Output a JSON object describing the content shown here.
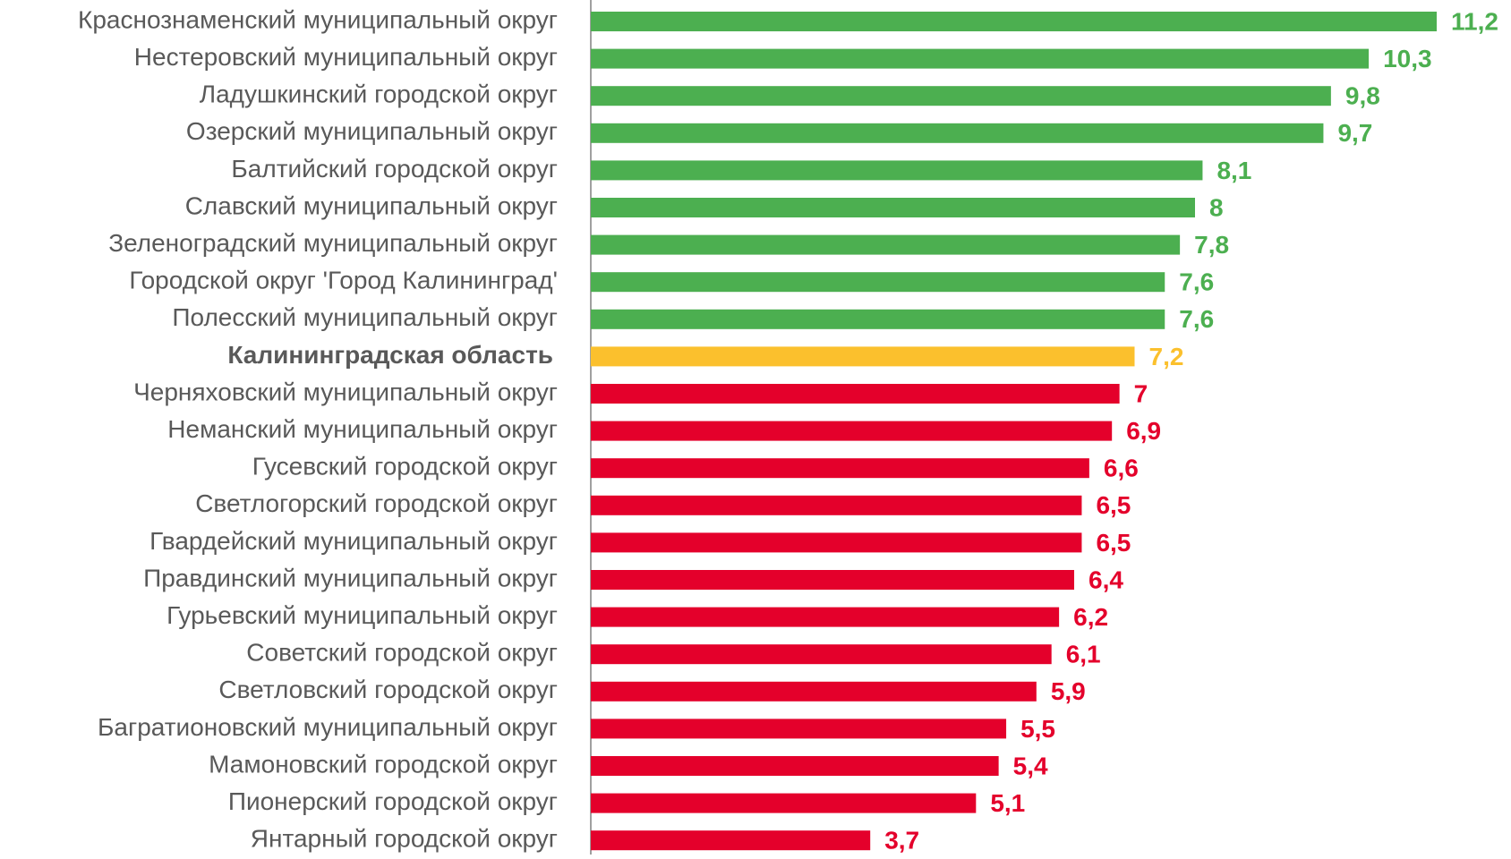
{
  "chart_data": {
    "type": "bar",
    "orientation": "horizontal",
    "categories": [
      "Краснознаменский муниципальный округ",
      "Нестеровский муниципальный округ",
      "Ладушкинский городской округ",
      "Озерский муниципальный округ",
      "Балтийский городской округ",
      "Славский муниципальный округ",
      "Зеленоградский муниципальный округ",
      "Городской округ 'Город Калининград'",
      "Полесский муниципальный округ",
      "Калининградская область",
      "Черняховский муниципальный округ",
      "Неманский муниципальный округ",
      "Гусевский городской округ",
      "Светлогорский городской округ",
      "Гвардейский муниципальный округ",
      "Правдинский муниципальный округ",
      "Гурьевский муниципальный округ",
      "Советский городской округ",
      "Светловский городской округ",
      "Багратионовский муниципальный округ",
      "Мамоновский городской округ",
      "Пионерский городской округ",
      "Янтарный городской округ"
    ],
    "values": [
      11.2,
      10.3,
      9.8,
      9.7,
      8.1,
      8,
      7.8,
      7.6,
      7.6,
      7.2,
      7,
      6.9,
      6.6,
      6.5,
      6.5,
      6.4,
      6.2,
      6.1,
      5.9,
      5.5,
      5.4,
      5.1,
      3.7
    ],
    "value_labels": [
      "11,2",
      "10,3",
      "9,8",
      "9,7",
      "8,1",
      "8",
      "7,8",
      "7,6",
      "7,6",
      "7,2",
      "7",
      "6,9",
      "6,6",
      "6,5",
      "6,5",
      "6,4",
      "6,2",
      "6,1",
      "5,9",
      "5,5",
      "5,4",
      "5,1",
      "3,7"
    ],
    "colors": [
      "#4caf50",
      "#4caf50",
      "#4caf50",
      "#4caf50",
      "#4caf50",
      "#4caf50",
      "#4caf50",
      "#4caf50",
      "#4caf50",
      "#fbc02d",
      "#e4002b",
      "#e4002b",
      "#e4002b",
      "#e4002b",
      "#e4002b",
      "#e4002b",
      "#e4002b",
      "#e4002b",
      "#e4002b",
      "#e4002b",
      "#e4002b",
      "#e4002b",
      "#e4002b"
    ]
  }
}
